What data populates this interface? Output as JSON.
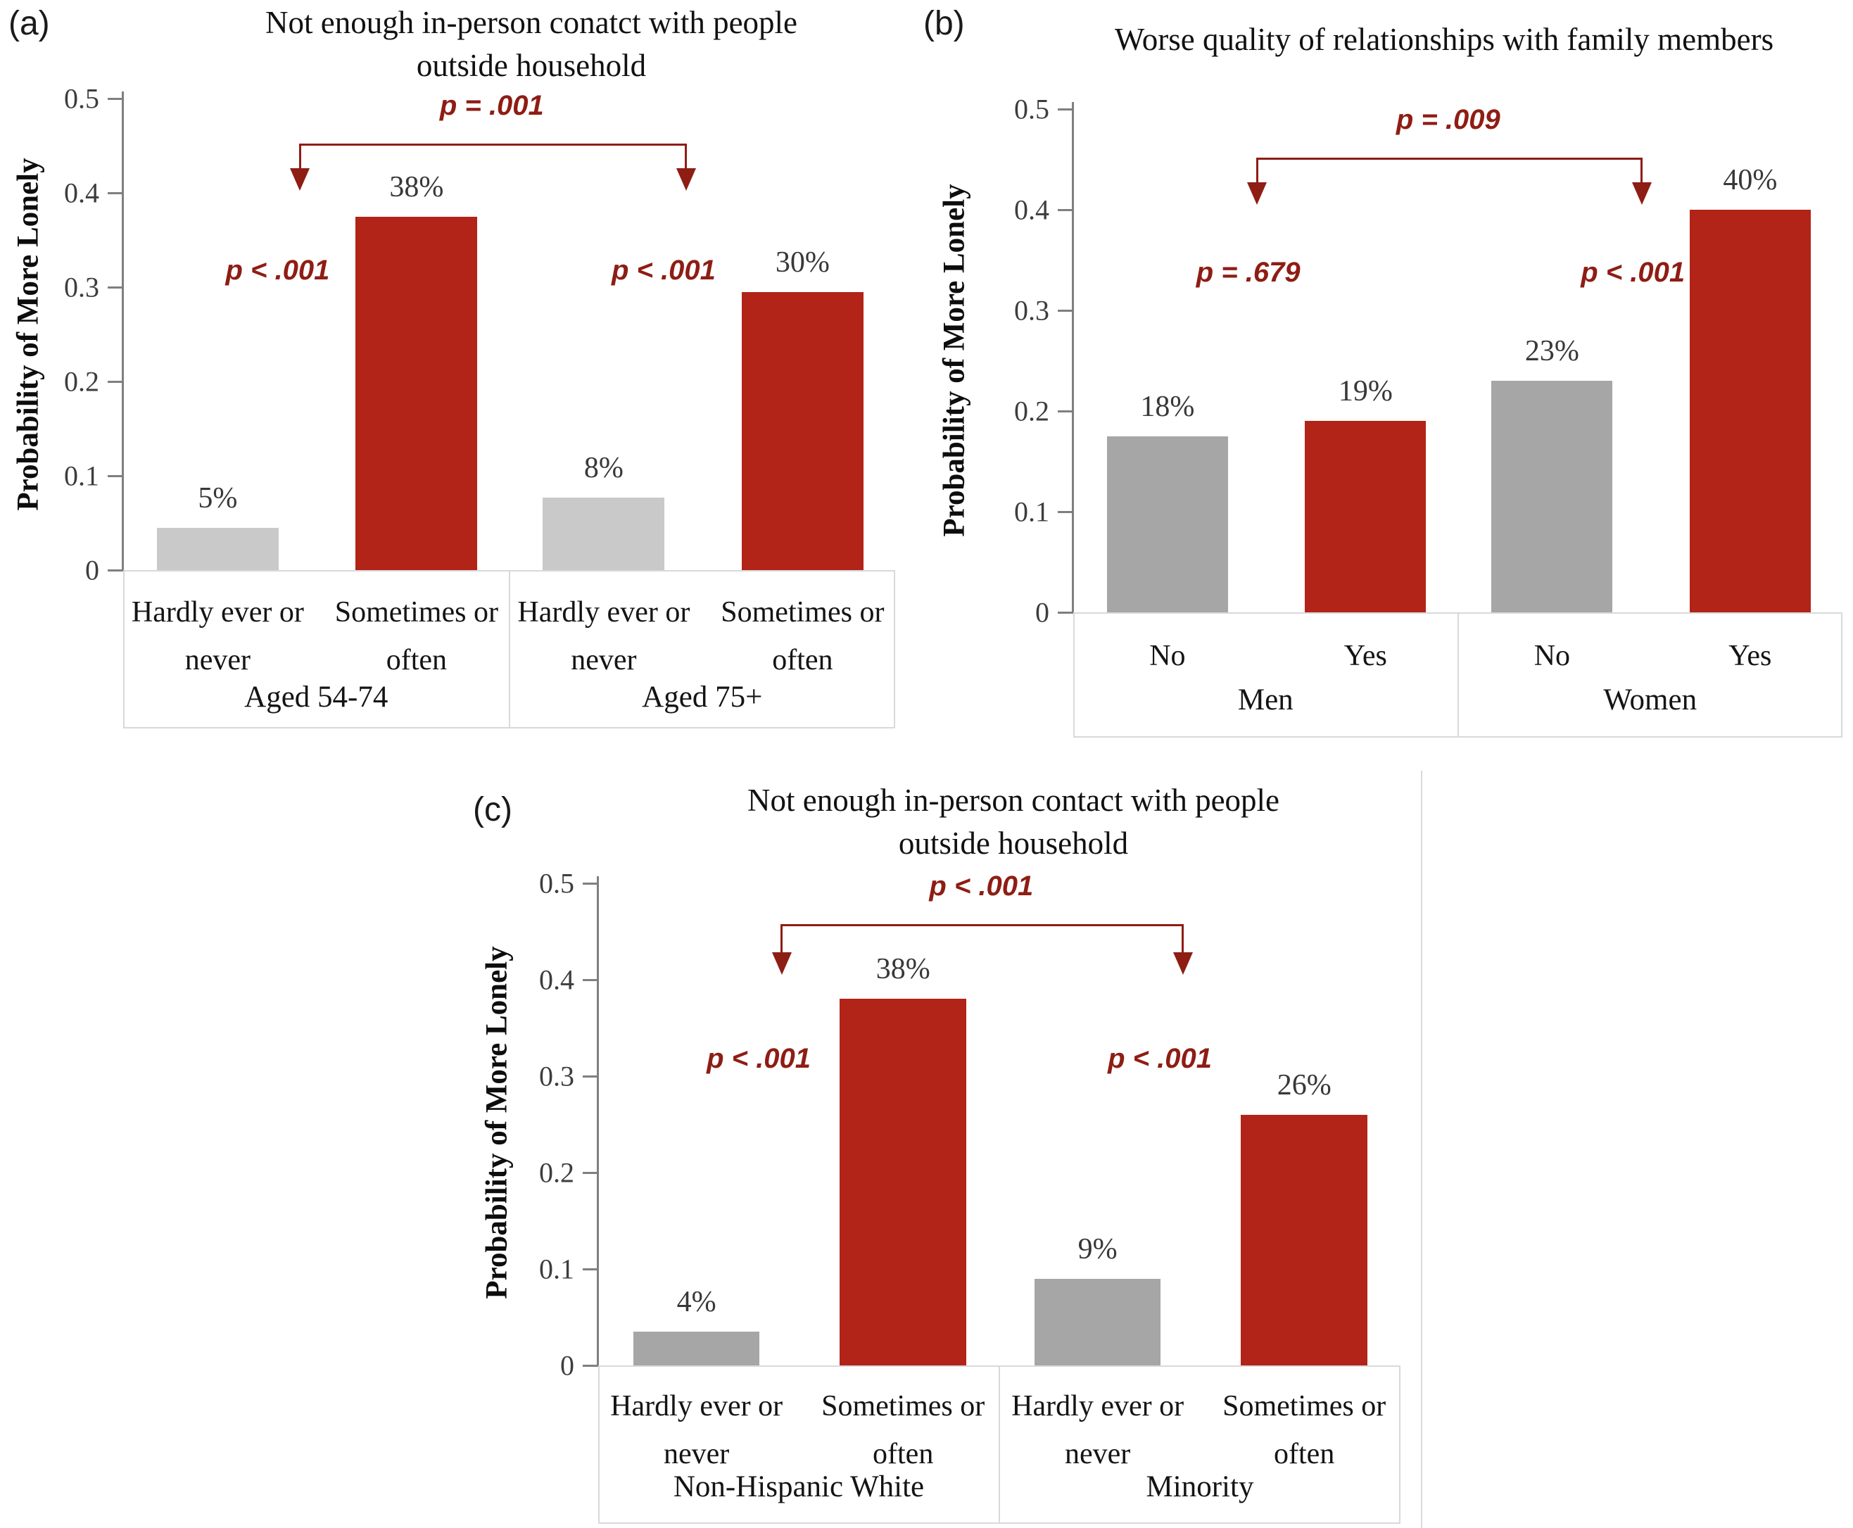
{
  "figure": {
    "background": "#ffffff",
    "description": "Probability of feeling more lonely, three bar-chart panels"
  },
  "colors": {
    "bar_red": "#B22318",
    "bar_gray_light": "#C9C9C9",
    "bar_gray": "#A6A6A6",
    "annotation_red": "#8E1D14",
    "axis_gray": "#7F7F7F",
    "box_border": "#D9D9D9",
    "tick_text": "#3D3D3D",
    "label_text": "#141414",
    "value_text": "#383838"
  },
  "chart_data": [
    {
      "type": "bar",
      "panel_label": "(a)",
      "title": "Not enough in-person conatct with people\noutside household",
      "ylabel": "Probability of More Lonely",
      "ylim": [
        0,
        0.5
      ],
      "yticks": [
        "0",
        "0.1",
        "0.2",
        "0.3",
        "0.4",
        "0.5"
      ],
      "grid": false,
      "legend": "none",
      "comparison": {
        "p_label": "p = .001"
      },
      "groups": [
        {
          "label": "Aged 54-74",
          "p_label": "p < .001",
          "bars": [
            {
              "category": "Hardly ever or\nnever",
              "label": "5%",
              "value": 0.045,
              "color": "gray_light"
            },
            {
              "category": "Sometimes or\noften",
              "label": "38%",
              "value": 0.375,
              "color": "red"
            }
          ]
        },
        {
          "label": "Aged 75+",
          "p_label": "p < .001",
          "bars": [
            {
              "category": "Hardly ever or\nnever",
              "label": "8%",
              "value": 0.077,
              "color": "gray_light"
            },
            {
              "category": "Sometimes or\noften",
              "label": "30%",
              "value": 0.295,
              "color": "red"
            }
          ]
        }
      ]
    },
    {
      "type": "bar",
      "panel_label": "(b)",
      "title": "Worse quality of relationships with family members",
      "ylabel": "Probability of More Lonely",
      "ylim": [
        0,
        0.5
      ],
      "yticks": [
        "0",
        "0.1",
        "0.2",
        "0.3",
        "0.4",
        "0.5"
      ],
      "grid": false,
      "legend": "none",
      "comparison": {
        "p_label": "p = .009"
      },
      "groups": [
        {
          "label": "Men",
          "p_label": "p = .679",
          "bars": [
            {
              "category": "No",
              "label": "18%",
              "value": 0.175,
              "color": "gray"
            },
            {
              "category": "Yes",
              "label": "19%",
              "value": 0.19,
              "color": "red"
            }
          ]
        },
        {
          "label": "Women",
          "p_label": "p < .001",
          "bars": [
            {
              "category": "No",
              "label": "23%",
              "value": 0.23,
              "color": "gray"
            },
            {
              "category": "Yes",
              "label": "40%",
              "value": 0.4,
              "color": "red"
            }
          ]
        }
      ]
    },
    {
      "type": "bar",
      "panel_label": "(c)",
      "title": "Not enough in-person contact with people\noutside household",
      "ylabel": "Probability of More Lonely",
      "ylim": [
        0,
        0.5
      ],
      "yticks": [
        "0",
        "0.1",
        "0.2",
        "0.3",
        "0.4",
        "0.5"
      ],
      "grid": false,
      "legend": "none",
      "comparison": {
        "p_label": "p < .001"
      },
      "groups": [
        {
          "label": "Non-Hispanic White",
          "p_label": "p < .001",
          "bars": [
            {
              "category": "Hardly ever or\nnever",
              "label": "4%",
              "value": 0.035,
              "color": "gray"
            },
            {
              "category": "Sometimes or\noften",
              "label": "38%",
              "value": 0.38,
              "color": "red"
            }
          ]
        },
        {
          "label": "Minority",
          "p_label": "p < .001",
          "bars": [
            {
              "category": "Hardly ever or\nnever",
              "label": "9%",
              "value": 0.09,
              "color": "gray"
            },
            {
              "category": "Sometimes or\noften",
              "label": "26%",
              "value": 0.26,
              "color": "red"
            }
          ]
        }
      ]
    }
  ]
}
